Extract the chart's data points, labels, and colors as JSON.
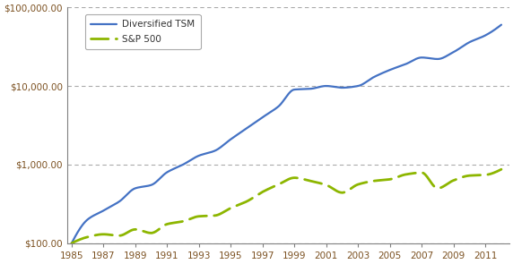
{
  "tsm_color": "#4472C4",
  "sp500_color": "#8DB600",
  "bg_color": "#FFFFFF",
  "grid_color": "#AAAAAA",
  "axis_color": "#808080",
  "tick_label_color": "#7B5020",
  "legend_labels": [
    "Diversified TSM",
    "S&P 500"
  ],
  "ylim": [
    100,
    100000
  ],
  "xlim": [
    1984.7,
    2012.5
  ],
  "yticks": [
    100,
    1000,
    10000,
    100000
  ],
  "ytick_labels": [
    "$100.00",
    "$1,000.00",
    "$10,000.00",
    "$100,000.00"
  ],
  "xticks": [
    1985,
    1987,
    1989,
    1991,
    1993,
    1995,
    1997,
    1999,
    2001,
    2003,
    2005,
    2007,
    2009,
    2011
  ],
  "tsm_years": [
    1985,
    1986,
    1987,
    1988,
    1989,
    1990,
    1991,
    1992,
    1993,
    1994,
    1995,
    1996,
    1997,
    1998,
    1999,
    2000,
    2001,
    2002,
    2003,
    2004,
    2005,
    2006,
    2007,
    2008,
    2009,
    2010,
    2011,
    2012
  ],
  "tsm_vals": [
    100,
    200,
    260,
    340,
    500,
    550,
    800,
    1000,
    1300,
    1500,
    2100,
    2900,
    4000,
    5500,
    9000,
    9200,
    10000,
    9500,
    10000,
    13000,
    16000,
    19000,
    23000,
    22000,
    27000,
    36000,
    44000,
    60000
  ],
  "sp500_years": [
    1985,
    1986,
    1987,
    1988,
    1989,
    1990,
    1991,
    1992,
    1993,
    1994,
    1995,
    1996,
    1997,
    1998,
    1999,
    2000,
    2001,
    2002,
    2003,
    2004,
    2005,
    2006,
    2007,
    2008,
    2009,
    2010,
    2011,
    2012
  ],
  "sp500_vals": [
    100,
    120,
    130,
    125,
    150,
    135,
    175,
    190,
    220,
    225,
    280,
    340,
    450,
    560,
    680,
    620,
    550,
    440,
    560,
    620,
    650,
    750,
    790,
    500,
    630,
    725,
    740,
    870
  ]
}
